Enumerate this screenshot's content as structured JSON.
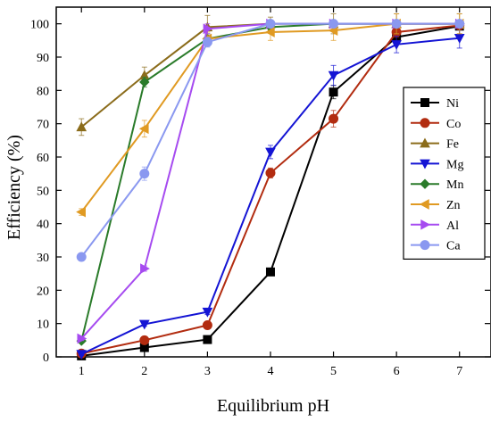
{
  "chart_data": {
    "type": "line",
    "xlabel": "Equilibrium pH",
    "ylabel": "Efficiency (%)",
    "xlim": [
      0.6,
      7.5
    ],
    "ylim": [
      0,
      105
    ],
    "x_ticks": [
      1,
      2,
      3,
      4,
      5,
      6,
      7
    ],
    "y_ticks": [
      0,
      10,
      20,
      30,
      40,
      50,
      60,
      70,
      80,
      90,
      100
    ],
    "legend_position": "right",
    "grid": false,
    "error_bars": true,
    "series": [
      {
        "name": "Ni",
        "color": "#000000",
        "marker": "square",
        "x": [
          1,
          2,
          3,
          4,
          5,
          6,
          7
        ],
        "y": [
          0.3,
          2.8,
          5.2,
          25.5,
          79.5,
          96,
          99.3
        ],
        "err": [
          0.3,
          0.5,
          0.6,
          1.0,
          2.0,
          1.5,
          1.0
        ]
      },
      {
        "name": "Co",
        "color": "#b22c10",
        "marker": "circle",
        "x": [
          1,
          2,
          3,
          4,
          5,
          6,
          7
        ],
        "y": [
          1.0,
          5.0,
          9.5,
          55.2,
          71.5,
          97.5,
          99.5
        ],
        "err": [
          0.4,
          0.6,
          0.8,
          1.5,
          2.5,
          1.5,
          1.0
        ]
      },
      {
        "name": "Fe",
        "color": "#8b6c1b",
        "marker": "triangle-up",
        "x": [
          1,
          2,
          3,
          4,
          5,
          6,
          7
        ],
        "y": [
          69,
          84.5,
          99,
          100,
          100,
          100,
          100
        ],
        "err": [
          2.5,
          2.5,
          3.5,
          2.0,
          3.0,
          3.0,
          3.0
        ]
      },
      {
        "name": "Mg",
        "color": "#1414d4",
        "marker": "triangle-down",
        "x": [
          1,
          2,
          3,
          4,
          5,
          6,
          7
        ],
        "y": [
          0.8,
          9.8,
          13.5,
          61.5,
          84.5,
          93.8,
          95.7
        ],
        "err": [
          0.4,
          0.6,
          0.8,
          2.0,
          3.0,
          2.5,
          3.0
        ]
      },
      {
        "name": "Mn",
        "color": "#2a7b2a",
        "marker": "diamond",
        "x": [
          1,
          2,
          3,
          4,
          5,
          6,
          7
        ],
        "y": [
          4.8,
          82.5,
          95.5,
          99,
          100,
          100,
          100
        ],
        "err": [
          0.6,
          1.5,
          1.5,
          1.0,
          1.0,
          1.0,
          1.0
        ]
      },
      {
        "name": "Zn",
        "color": "#e09a22",
        "marker": "triangle-left",
        "x": [
          1,
          2,
          3,
          4,
          5,
          6,
          7
        ],
        "y": [
          43.5,
          68.5,
          95.5,
          97.5,
          98,
          100,
          100
        ],
        "err": [
          1.0,
          2.5,
          2.0,
          2.5,
          3.0,
          3.0,
          3.0
        ]
      },
      {
        "name": "Al",
        "color": "#a64bf0",
        "marker": "triangle-right",
        "x": [
          1,
          2,
          3,
          4,
          5,
          6,
          7
        ],
        "y": [
          5.5,
          26.5,
          98.5,
          100,
          100,
          100,
          100
        ],
        "err": [
          0.6,
          0.8,
          1.5,
          1.0,
          1.0,
          1.0,
          1.0
        ]
      },
      {
        "name": "Ca",
        "color": "#8a98f0",
        "marker": "circle",
        "x": [
          1,
          2,
          3,
          4,
          5,
          6,
          7
        ],
        "y": [
          30,
          55,
          94.5,
          100,
          100,
          100,
          100
        ],
        "err": [
          1.0,
          2.0,
          1.5,
          1.0,
          1.0,
          1.0,
          1.0
        ]
      }
    ]
  }
}
